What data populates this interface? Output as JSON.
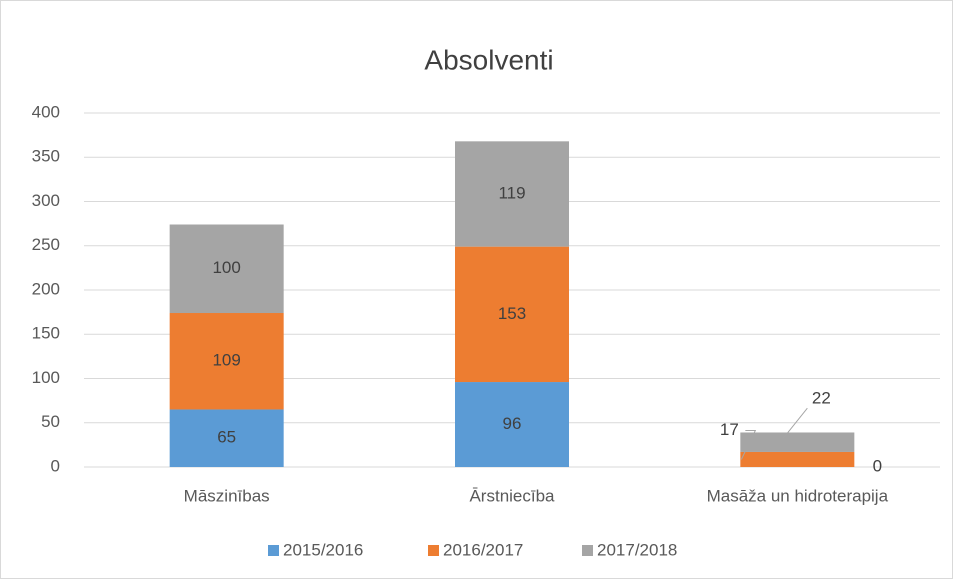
{
  "chart_data": {
    "type": "bar",
    "stacked": true,
    "title": "Absolventi",
    "categories": [
      "Māszinības",
      "Ārstniecība",
      "Masāža un hidroterapija"
    ],
    "series": [
      {
        "name": "2015/2016",
        "color": "#5b9bd5",
        "values": [
          65,
          96,
          0
        ]
      },
      {
        "name": "2016/2017",
        "color": "#ed7d31",
        "values": [
          109,
          153,
          17
        ]
      },
      {
        "name": "2017/2018",
        "color": "#a5a5a5",
        "values": [
          100,
          119,
          22
        ]
      }
    ],
    "ylim": [
      0,
      400
    ],
    "yticks": [
      0,
      50,
      100,
      150,
      200,
      250,
      300,
      350,
      400
    ],
    "grid": true,
    "legend": "bottom"
  }
}
